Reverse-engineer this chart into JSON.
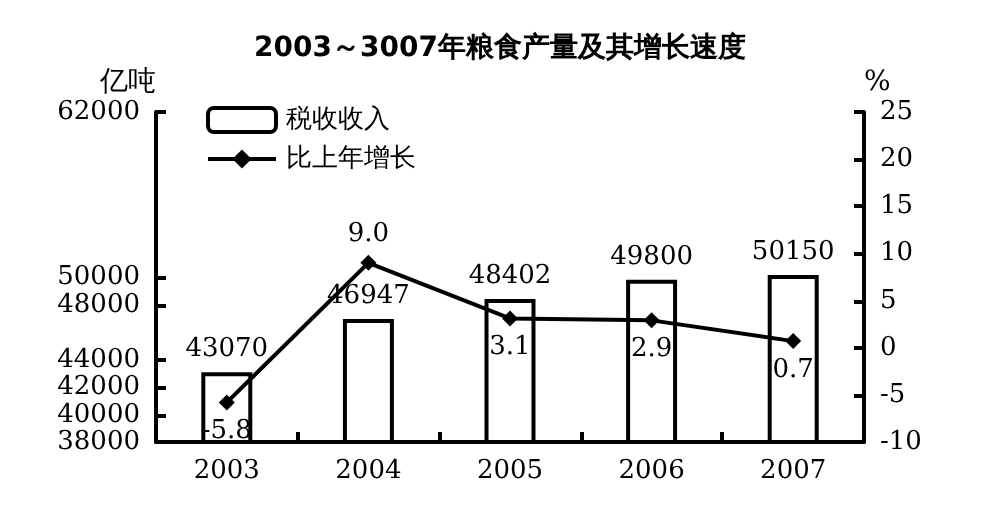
{
  "chart_data": {
    "type": "bar",
    "title": "2003～3007年粮食产量及其增长速度",
    "ylabel": "亿吨",
    "y2label": "%",
    "categories": [
      "2003",
      "2004",
      "2005",
      "2006",
      "2007"
    ],
    "series": [
      {
        "name": "税收收入",
        "color": "#ffffff",
        "values": [
          43070,
          46947,
          48402,
          49800,
          50150
        ],
        "value_labels": [
          "43070",
          "46947",
          "48402",
          "49800",
          "50150"
        ]
      },
      {
        "name": "比上年增长",
        "type": "line",
        "axis": "y2",
        "color": "#000000",
        "values": [
          -5.8,
          9.0,
          3.1,
          2.9,
          0.7
        ],
        "value_labels": [
          "-5.8",
          "9.0",
          "3.1",
          "2.9",
          "0.7"
        ]
      }
    ],
    "ylim": [
      38000,
      62000
    ],
    "yticks": [
      38000,
      40000,
      42000,
      44000,
      48000,
      50000,
      62000
    ],
    "y2lim": [
      -10,
      25
    ],
    "y2ticks": [
      -10,
      -5,
      0,
      5,
      10,
      15,
      20,
      25
    ],
    "legend": "top left",
    "grid": false,
    "marker": "diamond",
    "line_style": "solid"
  }
}
